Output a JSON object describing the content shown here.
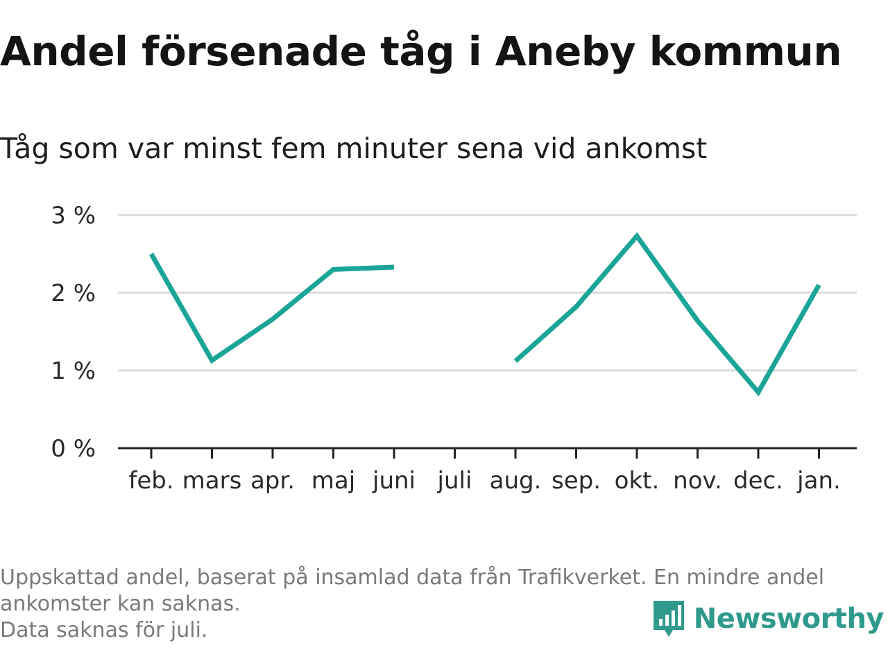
{
  "title": "Andel försenade tåg i Aneby kommun",
  "subtitle": "Tåg som var minst fem minuter sena vid ankomst",
  "footnote": {
    "line1": "Uppskattad andel, baserat på insamlad data från Trafikverket. En mindre andel",
    "line2": "ankomster kan saknas.",
    "line3": "Data saknas för juli."
  },
  "brand": {
    "name": "Newsworthy",
    "icon": "newsworthy-bar-chart-icon"
  },
  "colors": {
    "line": "#1aa596",
    "grid": "#dcdcdc",
    "axis": "#222222",
    "brand": "#2f9a8c"
  },
  "chart_data": {
    "type": "line",
    "categories": [
      "feb.",
      "mars",
      "apr.",
      "maj",
      "juni",
      "juli",
      "aug.",
      "sep.",
      "okt.",
      "nov.",
      "dec.",
      "jan."
    ],
    "series": [
      {
        "values": [
          2.5,
          1.13,
          1.66,
          2.3,
          2.33,
          null,
          1.12,
          1.82,
          2.73,
          1.64,
          0.72,
          2.1
        ]
      }
    ],
    "ylim": [
      0,
      3
    ],
    "yticks": [
      0,
      1,
      2,
      3
    ],
    "ytick_labels": [
      "0 %",
      "1 %",
      "2 %",
      "3 %"
    ],
    "grid": true,
    "xlabel": "",
    "ylabel": ""
  }
}
